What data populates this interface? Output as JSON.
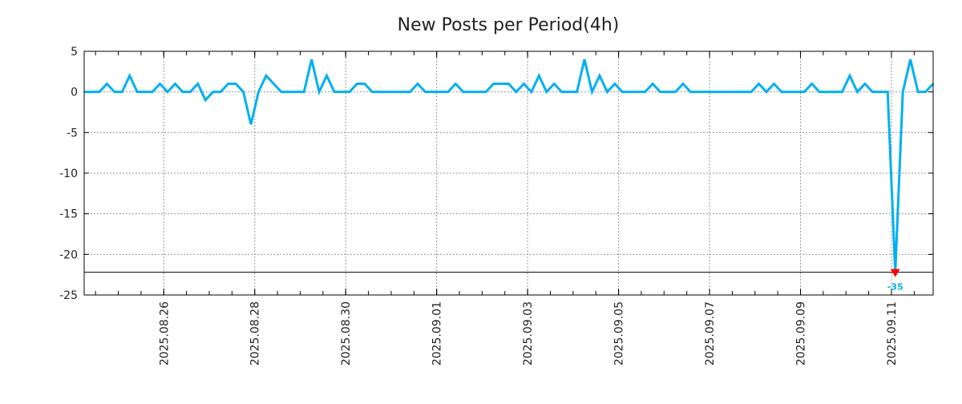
{
  "chart_data": {
    "type": "line",
    "title": "New Posts per Period(4h)",
    "xlabel": "",
    "ylabel": "",
    "period_hours": 4,
    "start": "2025.08.24 06:00",
    "ylim": [
      -25,
      5
    ],
    "yticks": [
      "5",
      "0",
      "-5",
      "-10",
      "-15",
      "-20",
      "-25"
    ],
    "ytick_values": [
      5,
      0,
      -5,
      -10,
      -15,
      -20,
      -25
    ],
    "xticks": [
      "2025.08.26",
      "2025.08.28",
      "2025.08.30",
      "2025.09.01",
      "2025.09.03",
      "2025.09.05",
      "2025.09.07",
      "2025.09.09",
      "2025.09.11"
    ],
    "grid": true,
    "series": [
      {
        "name": "New Posts",
        "color": "#00b0f0",
        "values": [
          0,
          0,
          0,
          1,
          0,
          0,
          2,
          0,
          0,
          0,
          1,
          0,
          1,
          0,
          0,
          1,
          -1,
          0,
          0,
          1,
          1,
          0,
          -4,
          0,
          2,
          1,
          0,
          0,
          0,
          0,
          4,
          0,
          2,
          0,
          0,
          0,
          1,
          1,
          0,
          0,
          0,
          0,
          0,
          0,
          1,
          0,
          0,
          0,
          0,
          1,
          0,
          0,
          0,
          0,
          1,
          1,
          1,
          0,
          1,
          0,
          2,
          0,
          1,
          0,
          0,
          0,
          4,
          0,
          2,
          0,
          1,
          0,
          0,
          0,
          0,
          1,
          0,
          0,
          0,
          1,
          0,
          0,
          0,
          0,
          0,
          0,
          0,
          0,
          0,
          1,
          0,
          1,
          0,
          0,
          0,
          0,
          1,
          0,
          0,
          0,
          0,
          2,
          0,
          1,
          0,
          0,
          0,
          -35,
          0,
          4,
          0,
          0,
          1
        ]
      }
    ],
    "clip_floor": -22.2,
    "annotations": [
      {
        "label": "-35",
        "marker": "down-triangle",
        "color": "#ff0000"
      }
    ]
  }
}
